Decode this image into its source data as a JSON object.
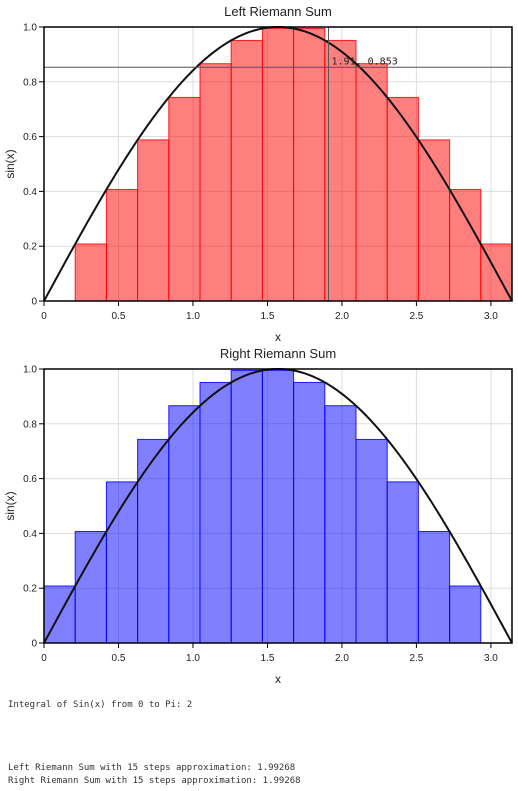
{
  "chart_data": [
    {
      "type": "bar",
      "title": "Left Riemann Sum",
      "xlabel": "x",
      "ylabel": "sin(x)",
      "xlim": [
        0,
        3.14159
      ],
      "ylim": [
        0,
        1.0
      ],
      "xticks": [
        "0",
        "0.5",
        "1.0",
        "1.5",
        "2.0",
        "2.5",
        "3.0"
      ],
      "yticks": [
        "0",
        "0.2",
        "0.4",
        "0.6",
        "0.8",
        "1.0"
      ],
      "grid": true,
      "bar_color": "#ff0000",
      "bars": [
        0,
        0.208,
        0.407,
        0.588,
        0.743,
        0.866,
        0.951,
        0.995,
        0.995,
        0.951,
        0.866,
        0.743,
        0.588,
        0.407,
        0.208
      ],
      "curve": "sin(x)",
      "crosshair": {
        "x": 1.91,
        "y": 0.853,
        "label": "1.91, 0.853"
      }
    },
    {
      "type": "bar",
      "title": "Right Riemann Sum",
      "xlabel": "x",
      "ylabel": "sin(x)",
      "xlim": [
        0,
        3.14159
      ],
      "ylim": [
        0,
        1.0
      ],
      "xticks": [
        "0",
        "0.5",
        "1.0",
        "1.5",
        "2.0",
        "2.5",
        "3.0"
      ],
      "yticks": [
        "0",
        "0.2",
        "0.4",
        "0.6",
        "0.8",
        "1.0"
      ],
      "grid": true,
      "bar_color": "#0000ff",
      "bars": [
        0.208,
        0.407,
        0.588,
        0.743,
        0.866,
        0.951,
        0.995,
        0.995,
        0.951,
        0.866,
        0.743,
        0.588,
        0.407,
        0.208,
        0
      ],
      "curve": "sin(x)"
    }
  ],
  "output": {
    "integral": "Integral of Sin(x) from 0 to Pi: 2",
    "left": "Left Riemann Sum with 15 steps approximation: 1.99268",
    "right": "Right Riemann Sum with 15 steps approximation: 1.99268"
  }
}
